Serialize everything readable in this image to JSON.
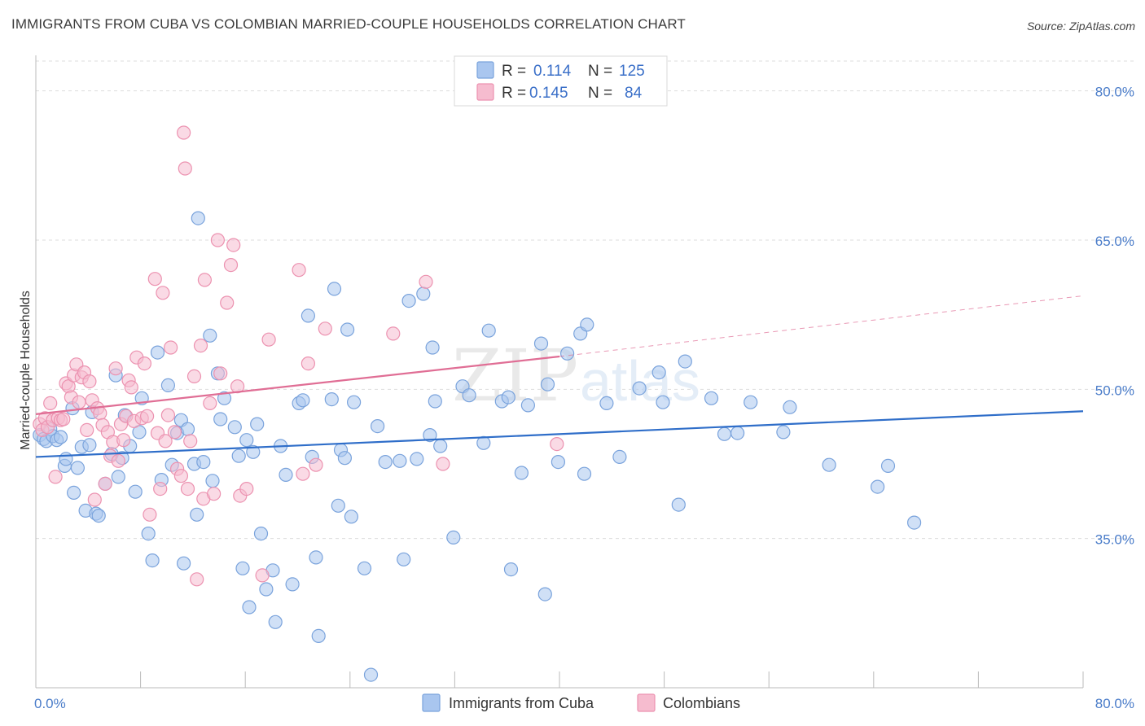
{
  "title": "IMMIGRANTS FROM CUBA VS COLOMBIAN MARRIED-COUPLE HOUSEHOLDS CORRELATION CHART",
  "source": "Source: ZipAtlas.com",
  "watermark": {
    "zip": "ZIP",
    "atlas": "atlas"
  },
  "colors": {
    "blue_fill": "#a9c6ef",
    "blue_stroke": "#7aa3dc",
    "blue_line": "#2f6ec9",
    "pink_fill": "#f6bccf",
    "pink_stroke": "#ec92b0",
    "pink_line": "#e06e95",
    "axis_label": "#4a7cc9",
    "grid": "#dddddd"
  },
  "legend_box": {
    "rows": [
      {
        "r_label": "R =",
        "r_value": "0.114",
        "n_label": "N =",
        "n_value": "125"
      },
      {
        "r_label": "R =",
        "r_value": "0.145",
        "n_label": "N =",
        "n_value": "84"
      }
    ]
  },
  "bottom_legend": [
    {
      "label": "Immigrants from Cuba"
    },
    {
      "label": "Colombians"
    }
  ],
  "chart_data": {
    "type": "scatter",
    "ylabel": "Married-couple Households",
    "x_tick_labels": [
      "0.0%",
      "80.0%"
    ],
    "y_tick_labels": [
      "80.0%",
      "65.0%",
      "50.0%",
      "35.0%"
    ],
    "y_ticks": [
      80,
      65,
      50,
      35
    ],
    "xlim": [
      0,
      80
    ],
    "ylim": [
      20,
      83
    ],
    "grid": true,
    "series": [
      {
        "name": "Immigrants from Cuba",
        "color": "#a9c6ef",
        "trend": {
          "x0": 0,
          "y0": 43.2,
          "x1": 80,
          "y1": 47.8
        },
        "points": [
          [
            0.3,
            45.4
          ],
          [
            0.6,
            45
          ],
          [
            0.8,
            44.8
          ],
          [
            1.1,
            46
          ],
          [
            1.3,
            45.3
          ],
          [
            1.6,
            44.9
          ],
          [
            1.9,
            45.2
          ],
          [
            2.2,
            42.3
          ],
          [
            2.3,
            43
          ],
          [
            2.8,
            48.1
          ],
          [
            2.9,
            39.6
          ],
          [
            3.2,
            42.1
          ],
          [
            3.5,
            44.2
          ],
          [
            3.8,
            37.8
          ],
          [
            4.1,
            44.4
          ],
          [
            4.3,
            47.7
          ],
          [
            4.6,
            37.5
          ],
          [
            4.8,
            37.3
          ],
          [
            5.3,
            40.5
          ],
          [
            5.8,
            43.5
          ],
          [
            6.1,
            51.4
          ],
          [
            6.3,
            41.2
          ],
          [
            6.6,
            43.1
          ],
          [
            6.8,
            47.4
          ],
          [
            7.2,
            44.3
          ],
          [
            7.6,
            39.7
          ],
          [
            7.9,
            45.7
          ],
          [
            8.1,
            49.1
          ],
          [
            8.6,
            35.5
          ],
          [
            8.9,
            32.8
          ],
          [
            9.3,
            53.7
          ],
          [
            9.6,
            40.9
          ],
          [
            10.1,
            50.4
          ],
          [
            10.4,
            42.4
          ],
          [
            10.8,
            45.6
          ],
          [
            11.1,
            46.9
          ],
          [
            11.3,
            32.5
          ],
          [
            11.6,
            46
          ],
          [
            12.1,
            42.5
          ],
          [
            12.3,
            37.4
          ],
          [
            12.4,
            67.2
          ],
          [
            12.8,
            42.7
          ],
          [
            13.3,
            55.4
          ],
          [
            13.5,
            40.8
          ],
          [
            13.9,
            51.6
          ],
          [
            14.1,
            47
          ],
          [
            14.4,
            49.1
          ],
          [
            15.2,
            46.2
          ],
          [
            15.5,
            43.3
          ],
          [
            15.8,
            32
          ],
          [
            16.1,
            44.9
          ],
          [
            16.3,
            28.1
          ],
          [
            16.6,
            43.7
          ],
          [
            16.9,
            46.5
          ],
          [
            17.2,
            35.5
          ],
          [
            17.6,
            29.9
          ],
          [
            18.1,
            31.8
          ],
          [
            18.3,
            26.6
          ],
          [
            18.7,
            44.3
          ],
          [
            19.1,
            41.4
          ],
          [
            19.6,
            30.4
          ],
          [
            20.1,
            48.6
          ],
          [
            20.4,
            48.9
          ],
          [
            20.8,
            57.4
          ],
          [
            21.1,
            43.2
          ],
          [
            21.4,
            33.1
          ],
          [
            21.6,
            25.2
          ],
          [
            22.6,
            49
          ],
          [
            22.8,
            60.1
          ],
          [
            23.1,
            38.3
          ],
          [
            23.3,
            43.9
          ],
          [
            23.6,
            43.1
          ],
          [
            23.8,
            56
          ],
          [
            24.1,
            37.2
          ],
          [
            24.3,
            48.7
          ],
          [
            25.1,
            32
          ],
          [
            25.6,
            21.3
          ],
          [
            26.1,
            46.3
          ],
          [
            26.7,
            42.7
          ],
          [
            27.8,
            42.8
          ],
          [
            28.1,
            32.9
          ],
          [
            28.5,
            58.9
          ],
          [
            29.1,
            43
          ],
          [
            29.6,
            59.6
          ],
          [
            30.1,
            45.4
          ],
          [
            30.3,
            54.2
          ],
          [
            30.5,
            48.8
          ],
          [
            30.9,
            44.3
          ],
          [
            31.9,
            35.1
          ],
          [
            32.6,
            50.3
          ],
          [
            33.1,
            49.4
          ],
          [
            34.2,
            44.6
          ],
          [
            34.6,
            55.9
          ],
          [
            35.6,
            48.8
          ],
          [
            36.1,
            49.2
          ],
          [
            36.3,
            31.9
          ],
          [
            37.1,
            41.6
          ],
          [
            37.6,
            48.4
          ],
          [
            38.6,
            54.6
          ],
          [
            38.9,
            29.4
          ],
          [
            39.1,
            50.5
          ],
          [
            39.9,
            42.7
          ],
          [
            40.6,
            53.6
          ],
          [
            41.6,
            55.6
          ],
          [
            41.9,
            41.5
          ],
          [
            42.1,
            56.5
          ],
          [
            43.6,
            48.6
          ],
          [
            44.6,
            43.2
          ],
          [
            46.1,
            50.1
          ],
          [
            47.6,
            51.7
          ],
          [
            47.9,
            48.7
          ],
          [
            49.1,
            38.4
          ],
          [
            49.6,
            52.8
          ],
          [
            51.6,
            49.1
          ],
          [
            52.6,
            45.5
          ],
          [
            53.6,
            45.6
          ],
          [
            54.6,
            48.7
          ],
          [
            57.1,
            45.7
          ],
          [
            57.6,
            48.2
          ],
          [
            60.6,
            42.4
          ],
          [
            64.3,
            40.2
          ],
          [
            65.1,
            42.3
          ],
          [
            67.1,
            36.6
          ]
        ]
      },
      {
        "name": "Colombians",
        "color": "#f6bccf",
        "trend": {
          "x0": 0,
          "y0": 47.5,
          "x1": 40,
          "y1": 53.3,
          "dash_x1": 80,
          "dash_y1": 59.4
        },
        "points": [
          [
            0.3,
            46.5
          ],
          [
            0.5,
            45.9
          ],
          [
            0.7,
            47.1
          ],
          [
            0.9,
            46.2
          ],
          [
            1.1,
            48.6
          ],
          [
            1.3,
            46.9
          ],
          [
            1.5,
            41.2
          ],
          [
            1.7,
            47.1
          ],
          [
            1.9,
            46.9
          ],
          [
            2.1,
            47
          ],
          [
            2.3,
            50.6
          ],
          [
            2.5,
            50.3
          ],
          [
            2.7,
            49.2
          ],
          [
            2.9,
            51.4
          ],
          [
            3.1,
            52.5
          ],
          [
            3.3,
            48.7
          ],
          [
            3.5,
            51.2
          ],
          [
            3.7,
            51.7
          ],
          [
            3.9,
            45.9
          ],
          [
            4.1,
            50.8
          ],
          [
            4.3,
            48.9
          ],
          [
            4.5,
            38.9
          ],
          [
            4.7,
            48.1
          ],
          [
            4.9,
            47.6
          ],
          [
            5.1,
            46.4
          ],
          [
            5.3,
            40.5
          ],
          [
            5.5,
            45.7
          ],
          [
            5.7,
            43.3
          ],
          [
            5.9,
            44.7
          ],
          [
            6.1,
            52.1
          ],
          [
            6.3,
            42.8
          ],
          [
            6.5,
            46.5
          ],
          [
            6.7,
            44.9
          ],
          [
            6.9,
            47.3
          ],
          [
            7.1,
            50.9
          ],
          [
            7.3,
            50.2
          ],
          [
            7.5,
            46.8
          ],
          [
            7.7,
            53.2
          ],
          [
            8.1,
            47.1
          ],
          [
            8.3,
            52.6
          ],
          [
            8.5,
            47.3
          ],
          [
            8.7,
            37.4
          ],
          [
            9.1,
            61.1
          ],
          [
            9.3,
            45.6
          ],
          [
            9.5,
            40
          ],
          [
            9.7,
            59.7
          ],
          [
            9.9,
            44.8
          ],
          [
            10.1,
            47.4
          ],
          [
            10.3,
            54.2
          ],
          [
            10.6,
            45.7
          ],
          [
            10.8,
            42
          ],
          [
            11.1,
            41.3
          ],
          [
            11.3,
            75.8
          ],
          [
            11.4,
            72.2
          ],
          [
            11.6,
            40
          ],
          [
            11.8,
            44.8
          ],
          [
            12.1,
            51.3
          ],
          [
            12.3,
            30.9
          ],
          [
            12.6,
            54.4
          ],
          [
            12.8,
            39
          ],
          [
            12.9,
            61
          ],
          [
            13.3,
            48.6
          ],
          [
            13.6,
            39.5
          ],
          [
            13.9,
            65
          ],
          [
            14.1,
            51.6
          ],
          [
            14.6,
            58.7
          ],
          [
            14.9,
            62.5
          ],
          [
            15.1,
            64.5
          ],
          [
            15.4,
            50.3
          ],
          [
            15.6,
            39.3
          ],
          [
            16.1,
            40
          ],
          [
            17.3,
            31.3
          ],
          [
            17.8,
            55
          ],
          [
            20.1,
            62
          ],
          [
            20.4,
            41.5
          ],
          [
            20.8,
            52.6
          ],
          [
            21.4,
            42.4
          ],
          [
            22.1,
            56.1
          ],
          [
            27.3,
            55.6
          ],
          [
            29.8,
            60.8
          ],
          [
            31.1,
            42.5
          ],
          [
            39.8,
            44.5
          ]
        ]
      }
    ]
  }
}
